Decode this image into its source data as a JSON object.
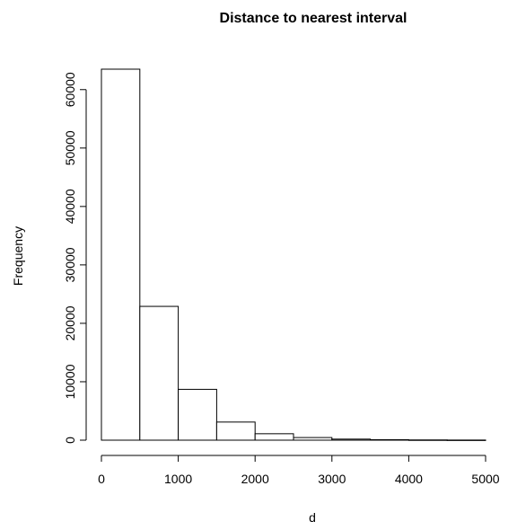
{
  "chart_data": {
    "type": "bar",
    "title": "Distance to nearest interval",
    "xlabel": "d",
    "ylabel": "Frequency",
    "bins": [
      {
        "x0": 0,
        "x1": 500,
        "value": 63500
      },
      {
        "x0": 500,
        "x1": 1000,
        "value": 22900
      },
      {
        "x0": 1000,
        "x1": 1500,
        "value": 8700
      },
      {
        "x0": 1500,
        "x1": 2000,
        "value": 3100
      },
      {
        "x0": 2000,
        "x1": 2500,
        "value": 1100
      },
      {
        "x0": 2500,
        "x1": 3000,
        "value": 450
      },
      {
        "x0": 3000,
        "x1": 3500,
        "value": 180
      },
      {
        "x0": 3500,
        "x1": 4000,
        "value": 80
      },
      {
        "x0": 4000,
        "x1": 4500,
        "value": 40
      },
      {
        "x0": 4500,
        "x1": 5000,
        "value": 20
      }
    ],
    "xlim": [
      0,
      5000
    ],
    "ylim": [
      0,
      63500
    ],
    "xticks": [
      0,
      1000,
      2000,
      3000,
      4000,
      5000
    ],
    "yticks": [
      0,
      10000,
      20000,
      30000,
      40000,
      50000,
      60000
    ],
    "grid": false,
    "legend": "none"
  }
}
